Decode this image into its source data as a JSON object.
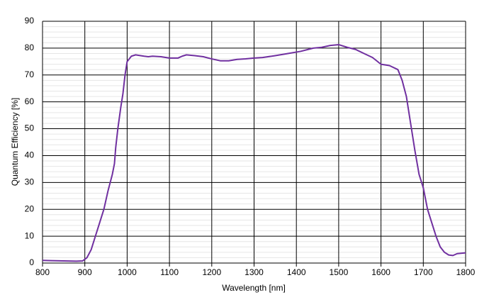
{
  "chart_data": {
    "type": "line",
    "x_label": "Wavelength [nm]",
    "y_label": "Quantum Efficiency [%]",
    "x": [
      800,
      820,
      850,
      880,
      895,
      905,
      915,
      925,
      935,
      945,
      955,
      965,
      970,
      973,
      978,
      985,
      990,
      995,
      1000,
      1010,
      1020,
      1040,
      1050,
      1060,
      1080,
      1100,
      1120,
      1130,
      1140,
      1160,
      1180,
      1200,
      1220,
      1240,
      1260,
      1280,
      1300,
      1320,
      1350,
      1380,
      1410,
      1440,
      1460,
      1480,
      1500,
      1520,
      1540,
      1560,
      1580,
      1600,
      1620,
      1640,
      1650,
      1660,
      1670,
      1680,
      1690,
      1700,
      1710,
      1720,
      1730,
      1740,
      1750,
      1760,
      1770,
      1780,
      1800
    ],
    "values": [
      1,
      0.9,
      0.8,
      0.7,
      0.8,
      2,
      5,
      10,
      15,
      20,
      27,
      33,
      37,
      43,
      50,
      58,
      63,
      70,
      75,
      77,
      77.5,
      77,
      76.8,
      77,
      76.8,
      76.3,
      76.3,
      77,
      77.5,
      77.2,
      76.8,
      76,
      75.3,
      75.3,
      75.8,
      76,
      76.3,
      76.5,
      77.2,
      78,
      78.8,
      80,
      80.3,
      81,
      81.3,
      80.3,
      79.5,
      78,
      76.5,
      74,
      73.5,
      72,
      68,
      62,
      52,
      42,
      33,
      28,
      20,
      15,
      10,
      6,
      4,
      3,
      2.8,
      3.5,
      3.8
    ],
    "color": "#7030a0",
    "xlim": [
      800,
      1800
    ],
    "xticks": [
      800,
      900,
      1000,
      1100,
      1200,
      1300,
      1400,
      1500,
      1600,
      1700,
      1800
    ],
    "ylim": [
      0,
      90
    ],
    "yticks": [
      0,
      10,
      20,
      30,
      40,
      50,
      60,
      70,
      80,
      90
    ],
    "y_minor_ticks": [
      2,
      4,
      6,
      8,
      12,
      14,
      16,
      18,
      22,
      24,
      26,
      28,
      32,
      34,
      36,
      38,
      42,
      44,
      46,
      48,
      52,
      54,
      56,
      58,
      62,
      64,
      66,
      68,
      72,
      74,
      76,
      78,
      82,
      84,
      86,
      88
    ],
    "grid": true
  }
}
